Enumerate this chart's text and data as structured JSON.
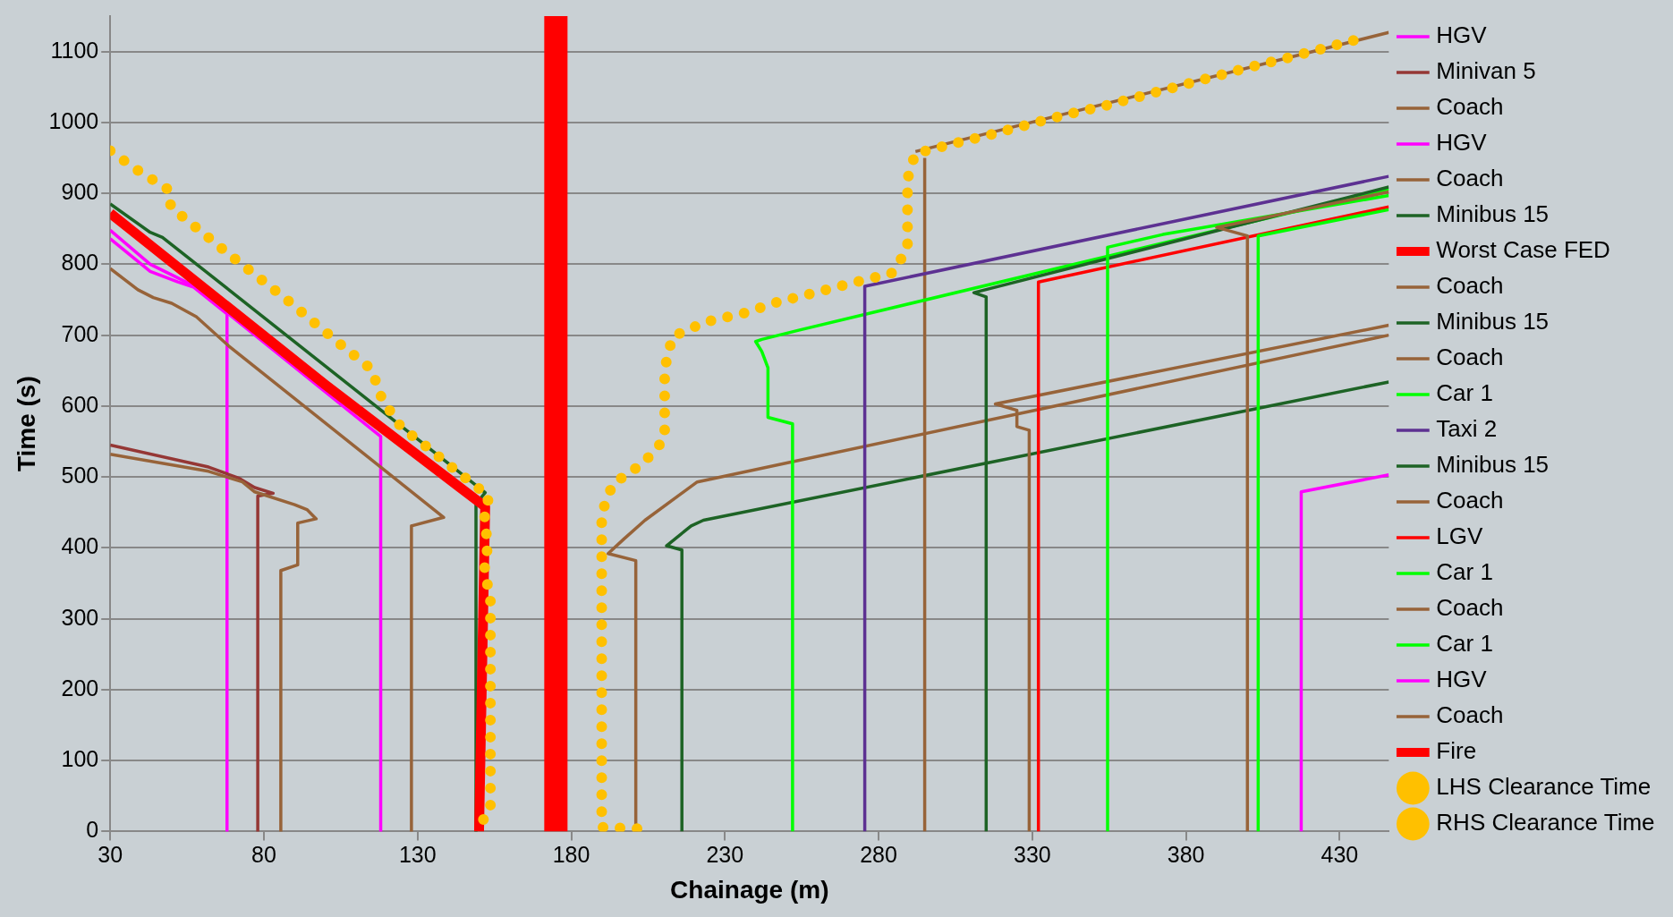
{
  "chart_data": {
    "type": "line",
    "xlabel": "Chainage (m)",
    "ylabel": "Time (s)",
    "xlim": [
      30,
      446
    ],
    "xticks": [
      30,
      80,
      130,
      180,
      230,
      280,
      330,
      380,
      430
    ],
    "ylim": [
      0,
      1150
    ],
    "yticks": [
      0,
      100,
      200,
      300,
      400,
      500,
      600,
      700,
      800,
      900,
      1000,
      1100
    ],
    "grid": "y",
    "legend": "right",
    "marker": "none",
    "line_style": "solid",
    "series": [
      {
        "name": "HGV",
        "color": "#ff00ff",
        "x": [
          30,
          43,
          52,
          57,
          68,
          68
        ],
        "values": [
          836,
          790,
          775,
          768,
          730,
          0
        ]
      },
      {
        "name": "Minivan 5",
        "color": "#953735",
        "x": [
          30,
          62,
          72,
          77,
          83,
          78,
          78
        ],
        "values": [
          545,
          514,
          498,
          485,
          477,
          473,
          0
        ]
      },
      {
        "name": "Coach",
        "color": "#976339",
        "x": [
          30,
          62,
          73,
          77,
          90,
          94,
          97,
          91,
          91,
          85.5,
          85.5
        ],
        "values": [
          532,
          508,
          493,
          479,
          461,
          454,
          441,
          435,
          376,
          368,
          0
        ]
      },
      {
        "name": "HGV",
        "color": "#ff00ff",
        "x": [
          30,
          43,
          57,
          118,
          118
        ],
        "values": [
          848,
          800,
          770,
          557,
          0
        ]
      },
      {
        "name": "Coach",
        "color": "#976339",
        "x": [
          30,
          39,
          44,
          50,
          58,
          68.5,
          138.5,
          128,
          128
        ],
        "values": [
          794,
          764,
          753,
          745,
          726,
          685,
          443,
          431,
          0
        ]
      },
      {
        "name": "Minibus 15",
        "color": "#1d6325",
        "x": [
          30,
          43,
          47,
          152,
          149,
          149
        ],
        "values": [
          885,
          845,
          838,
          478,
          462,
          0
        ]
      },
      {
        "name": "Worst Case FED",
        "color": "#ff0000",
        "x": [
          30,
          100,
          152,
          150
        ],
        "values": [
          872,
          630,
          458,
          0
        ]
      },
      {
        "name": "Coach",
        "color": "#976339",
        "x": [
          201,
          201,
          192,
          197,
          204,
          221,
          446
        ],
        "values": [
          0,
          382,
          392,
          412,
          439,
          493,
          700
        ]
      },
      {
        "name": "Minibus 15",
        "color": "#1d6325",
        "x": [
          216,
          216,
          211,
          219,
          223,
          446
        ],
        "values": [
          0,
          397,
          403,
          431,
          439,
          634
        ]
      },
      {
        "name": "Coach",
        "color": "#976339",
        "x": [
          295,
          295
        ],
        "values": [
          0,
          950
        ]
      },
      {
        "name": "Car 1",
        "color": "#00ff00",
        "x": [
          252,
          252,
          244,
          244,
          242,
          240,
          242,
          254,
          446
        ],
        "values": [
          0,
          575,
          584,
          654,
          677,
          691,
          694,
          707,
          906
        ]
      },
      {
        "name": "Taxi 2",
        "color": "#5d3192",
        "x": [
          275.5,
          275.5,
          446
        ],
        "values": [
          0,
          769,
          924
        ]
      },
      {
        "name": "Minibus 15",
        "color": "#1d6325",
        "x": [
          315,
          315,
          311,
          446
        ],
        "values": [
          0,
          754,
          760,
          909
        ]
      },
      {
        "name": "Coach",
        "color": "#976339",
        "x": [
          329,
          329,
          325,
          325,
          318,
          446
        ],
        "values": [
          0,
          566,
          571,
          594,
          603,
          714
        ]
      },
      {
        "name": "LGV",
        "color": "#ff0000",
        "x": [
          332,
          332,
          446
        ],
        "values": [
          0,
          775,
          881
        ]
      },
      {
        "name": "Car 1",
        "color": "#00ff00",
        "x": [
          354.5,
          354.5,
          372.5,
          446
        ],
        "values": [
          0,
          824,
          842,
          897
        ]
      },
      {
        "name": "Coach",
        "color": "#976339",
        "x": [
          400,
          400,
          390,
          446
        ],
        "values": [
          0,
          840,
          852,
          902
        ]
      },
      {
        "name": "Car 1",
        "color": "#00ff00",
        "x": [
          403.5,
          403.5,
          446
        ],
        "values": [
          0,
          840,
          877
        ]
      },
      {
        "name": "HGV",
        "color": "#ff00ff",
        "x": [
          417.5,
          417.5,
          446
        ],
        "values": [
          0,
          479,
          503
        ]
      },
      {
        "name": "Coach",
        "color": "#976339",
        "x": [
          292,
          446
        ],
        "values": [
          959,
          1127
        ]
      },
      {
        "name": "Fire",
        "color": "#ff0000",
        "x": [
          175,
          175
        ],
        "values": [
          0,
          1150
        ]
      },
      {
        "name": "LHS Clearance Time",
        "color": "#ffc000",
        "line_style": "dotted",
        "x": [
          30,
          38.4,
          48.7,
          49.8,
          58.8,
          68.1,
          77.5,
          87.2,
          96.3,
          105.5,
          115,
          118.5,
          124.7,
          134.3,
          143.6,
          153.2,
          151.8,
          152.8,
          151.8,
          153.7,
          153.7,
          153.7,
          153.7,
          153.7,
          153.7,
          153.7,
          148.3
        ],
        "values": [
          960,
          934,
          906,
          880,
          849,
          816,
          784,
          751,
          718,
          685,
          652,
          609,
          570,
          538,
          505,
          473,
          445,
          402,
          371,
          325,
          275,
          225,
          176,
          127,
          78,
          29,
          0
        ]
      },
      {
        "name": "RHS Clearance Time",
        "color": "#ffc000",
        "line_style": "dotted",
        "x": [
          201.4,
          189.9,
          189.9,
          189.9,
          189.9,
          189.9,
          189.9,
          189.9,
          189.9,
          189.9,
          189.9,
          193.5,
          203.6,
          210.4,
          210.4,
          210.4,
          212.9,
          224,
          236.1,
          247.4,
          259.5,
          271.8,
          284.1,
          289.4,
          289.4,
          289.4,
          291.9,
          304.2,
          316.6,
          328.6,
          340.9,
          353.2,
          365.4,
          377.5,
          389.5,
          401.8,
          413.9,
          426.1,
          438.2
        ],
        "values": [
          4,
          6,
          55,
          104,
          153,
          202,
          251,
          300,
          350,
          399,
          449,
          490,
          520,
          554,
          604,
          653,
          698,
          719,
          731,
          747,
          760,
          774,
          787,
          821,
          870,
          920,
          956,
          970,
          983,
          997,
          1011,
          1023,
          1037,
          1051,
          1065,
          1079,
          1092,
          1106,
          1120
        ]
      }
    ]
  }
}
